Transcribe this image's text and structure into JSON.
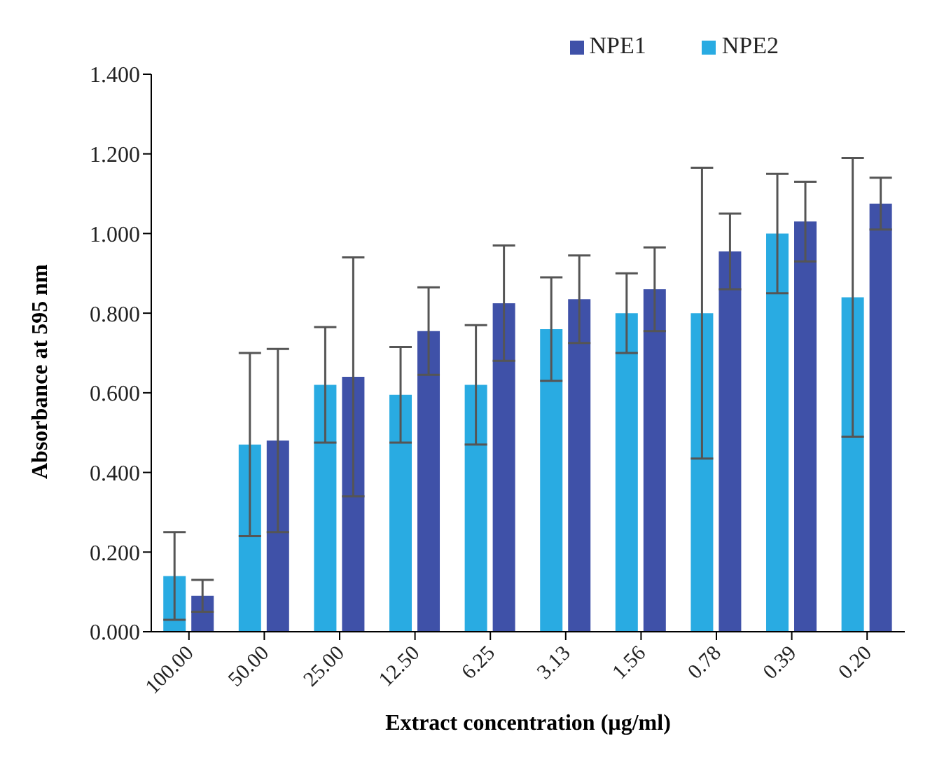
{
  "chart_data": {
    "type": "bar",
    "xlabel": "Extract concentration (µg/ml)",
    "ylabel": "Absorbance at 595 nm",
    "categories": [
      "100.00",
      "50.00",
      "25.00",
      "12.50",
      "6.25",
      "3.13",
      "1.56",
      "0.78",
      "0.39",
      "0.20"
    ],
    "series": [
      {
        "name": "NPE2",
        "color": "#29abe2",
        "values": [
          0.14,
          0.47,
          0.62,
          0.595,
          0.62,
          0.76,
          0.8,
          0.8,
          1.0,
          0.84
        ],
        "errors": [
          0.11,
          0.23,
          0.145,
          0.12,
          0.15,
          0.13,
          0.1,
          0.365,
          0.15,
          0.35
        ]
      },
      {
        "name": "NPE1",
        "color": "#3f51a8",
        "values": [
          0.09,
          0.48,
          0.64,
          0.755,
          0.825,
          0.835,
          0.86,
          0.955,
          1.03,
          1.075
        ],
        "errors": [
          0.04,
          0.23,
          0.3,
          0.11,
          0.145,
          0.11,
          0.105,
          0.095,
          0.1,
          0.065
        ]
      }
    ],
    "ylim": [
      0,
      1.4
    ],
    "yticks": [
      {
        "value": 0,
        "label": "0.000"
      },
      {
        "value": 0.2,
        "label": "0.200"
      },
      {
        "value": 0.4,
        "label": "0.400"
      },
      {
        "value": 0.6,
        "label": "0.600"
      },
      {
        "value": 0.8,
        "label": "0.800"
      },
      {
        "value": 1.0,
        "label": "1.000"
      },
      {
        "value": 1.2,
        "label": "1.200"
      },
      {
        "value": 1.4,
        "label": "1.400"
      }
    ],
    "grid": false,
    "legend": "top right"
  }
}
